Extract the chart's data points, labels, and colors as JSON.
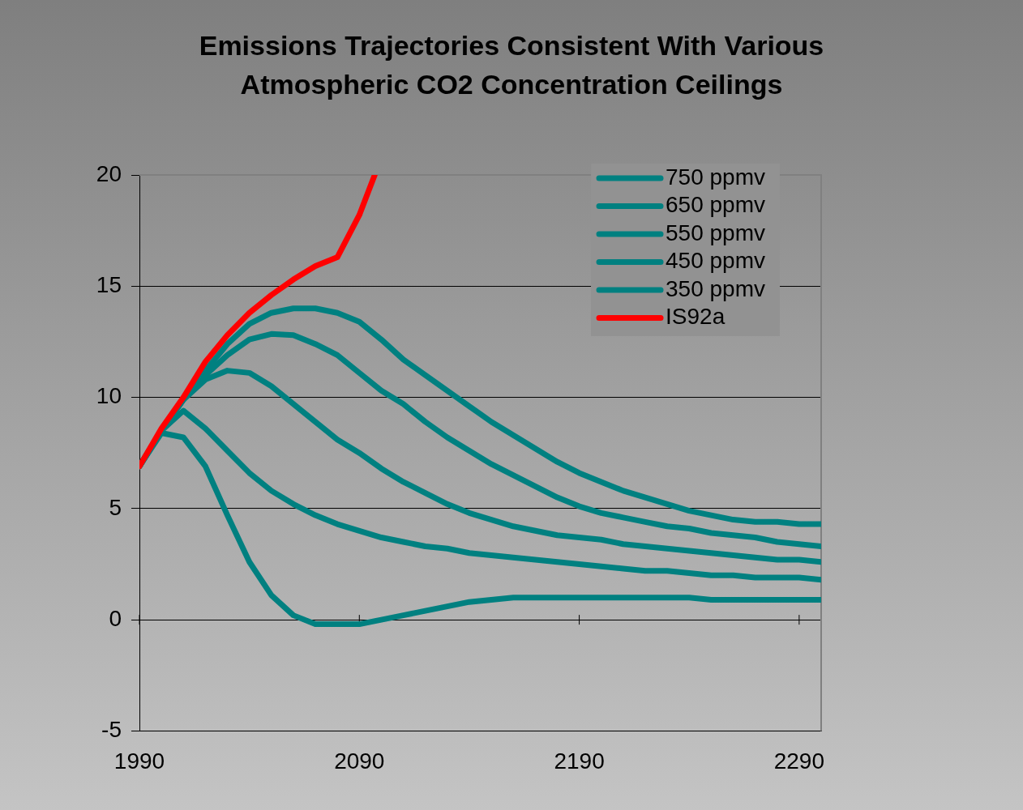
{
  "chart_data": {
    "type": "line",
    "title": "Emissions Trajectories Consistent With Various Atmospheric CO2 Concentration Ceilings",
    "x": [
      1990,
      2000,
      2010,
      2020,
      2030,
      2040,
      2050,
      2060,
      2070,
      2080,
      2090,
      2100,
      2110,
      2120,
      2130,
      2140,
      2150,
      2160,
      2170,
      2180,
      2190,
      2200,
      2210,
      2220,
      2230,
      2240,
      2250,
      2260,
      2270,
      2280,
      2290,
      2300
    ],
    "series": [
      {
        "name": "750 ppmv",
        "color": "#008080",
        "values": [
          6.9,
          8.5,
          9.9,
          11.2,
          12.4,
          13.3,
          13.8,
          14.0,
          14.0,
          13.8,
          13.4,
          12.6,
          11.7,
          11.0,
          10.3,
          9.6,
          8.9,
          8.3,
          7.7,
          7.1,
          6.6,
          6.2,
          5.8,
          5.5,
          5.2,
          4.9,
          4.7,
          4.5,
          4.4,
          4.4,
          4.3,
          4.3
        ]
      },
      {
        "name": "650 ppmv",
        "color": "#008080",
        "values": [
          6.9,
          8.5,
          9.9,
          11.0,
          11.9,
          12.6,
          12.85,
          12.8,
          12.4,
          11.9,
          11.1,
          10.3,
          9.7,
          8.9,
          8.2,
          7.6,
          7.0,
          6.5,
          6.0,
          5.5,
          5.1,
          4.8,
          4.6,
          4.4,
          4.2,
          4.1,
          3.9,
          3.8,
          3.7,
          3.5,
          3.4,
          3.3
        ]
      },
      {
        "name": "550 ppmv",
        "color": "#008080",
        "values": [
          6.9,
          8.5,
          9.9,
          10.8,
          11.2,
          11.1,
          10.5,
          9.7,
          8.9,
          8.1,
          7.5,
          6.8,
          6.2,
          5.7,
          5.2,
          4.8,
          4.5,
          4.2,
          4.0,
          3.8,
          3.7,
          3.6,
          3.4,
          3.3,
          3.2,
          3.1,
          3.0,
          2.9,
          2.8,
          2.7,
          2.7,
          2.6
        ]
      },
      {
        "name": "450 ppmv",
        "color": "#008080",
        "values": [
          6.9,
          8.5,
          9.4,
          8.6,
          7.6,
          6.6,
          5.8,
          5.2,
          4.7,
          4.3,
          4.0,
          3.7,
          3.5,
          3.3,
          3.2,
          3.0,
          2.9,
          2.8,
          2.7,
          2.6,
          2.5,
          2.4,
          2.3,
          2.2,
          2.2,
          2.1,
          2.0,
          2.0,
          1.9,
          1.9,
          1.9,
          1.8
        ]
      },
      {
        "name": "350 ppmv",
        "color": "#008080",
        "values": [
          6.9,
          8.4,
          8.2,
          6.9,
          4.7,
          2.6,
          1.1,
          0.2,
          -0.2,
          -0.2,
          -0.2,
          0.0,
          0.2,
          0.4,
          0.6,
          0.8,
          0.9,
          1.0,
          1.0,
          1.0,
          1.0,
          1.0,
          1.0,
          1.0,
          1.0,
          1.0,
          0.9,
          0.9,
          0.9,
          0.9,
          0.9,
          0.9
        ]
      },
      {
        "name": "IS92a",
        "color": "#ff0000",
        "x": [
          1990,
          2000,
          2010,
          2020,
          2030,
          2040,
          2050,
          2060,
          2070,
          2080,
          2090,
          2097
        ],
        "values": [
          6.9,
          8.6,
          10.0,
          11.6,
          12.8,
          13.8,
          14.6,
          15.3,
          15.9,
          16.3,
          18.2,
          20
        ]
      }
    ],
    "xlim": [
      1990,
      2300
    ],
    "xticks": [
      1990,
      2090,
      2190,
      2290
    ],
    "ylim": [
      -5,
      20
    ],
    "yticks": [
      -5,
      0,
      5,
      10,
      15,
      20
    ],
    "grid": "y",
    "legend": "top right",
    "marker": "none",
    "line_style": "solid"
  }
}
